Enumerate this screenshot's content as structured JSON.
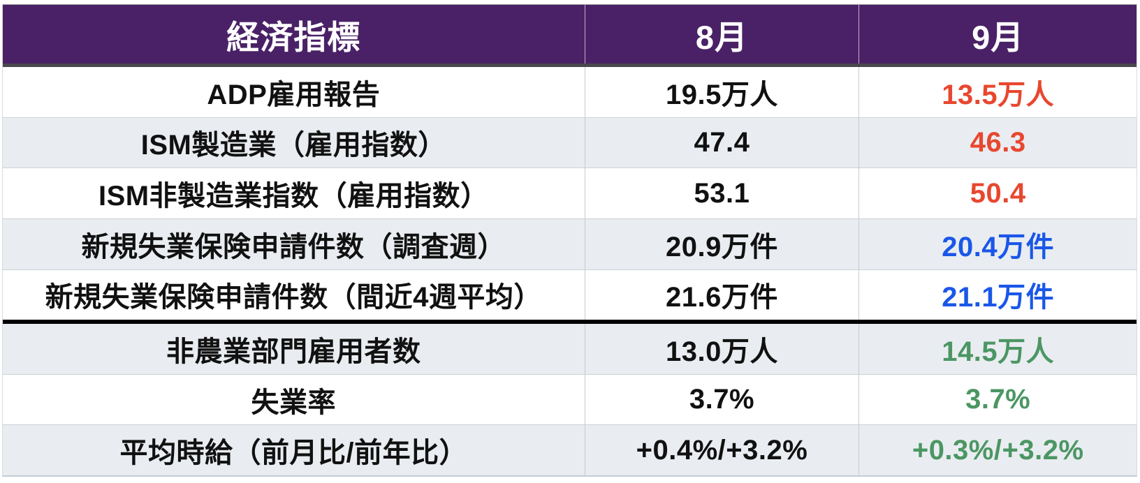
{
  "chart_data": {
    "type": "table",
    "title": "経済指標",
    "columns": [
      "経済指標",
      "8月",
      "9月"
    ],
    "rows": [
      {
        "label": "ADP雇用報告",
        "august": "19.5万人",
        "september": "13.5万人",
        "september_color": "red",
        "section_start": false
      },
      {
        "label": "ISM製造業（雇用指数）",
        "august": "47.4",
        "september": "46.3",
        "september_color": "red",
        "section_start": false
      },
      {
        "label": "ISM非製造業指数（雇用指数）",
        "august": "53.1",
        "september": "50.4",
        "september_color": "red",
        "section_start": false
      },
      {
        "label": "新規失業保険申請件数（調査週）",
        "august": "20.9万件",
        "september": "20.4万件",
        "september_color": "blue",
        "section_start": false
      },
      {
        "label": "新規失業保険申請件数（間近4週平均）",
        "august": "21.6万件",
        "september": "21.1万件",
        "september_color": "blue",
        "section_start": false
      },
      {
        "label": "非農業部門雇用者数",
        "august": "13.0万人",
        "september": "14.5万人",
        "september_color": "green",
        "section_start": true
      },
      {
        "label": "失業率",
        "august": "3.7%",
        "september": "3.7%",
        "september_color": "green",
        "section_start": false
      },
      {
        "label": "平均時給（前月比/前年比）",
        "august": "+0.4%/+3.2%",
        "september": "+0.3%/+3.2%",
        "september_color": "green",
        "section_start": false
      }
    ],
    "colors": {
      "header_bg": "#4A2166",
      "header_text": "#FFFFFF",
      "alt_row_bg": "#E9EDF1",
      "body_text": "#111111",
      "red": "#E8472F",
      "blue": "#1A57E8",
      "green": "#4C9663",
      "section_line": "#000000"
    },
    "layout_hints": {
      "grid": "on",
      "alternating_rows": true,
      "section_break_before_row_index": 5
    }
  }
}
